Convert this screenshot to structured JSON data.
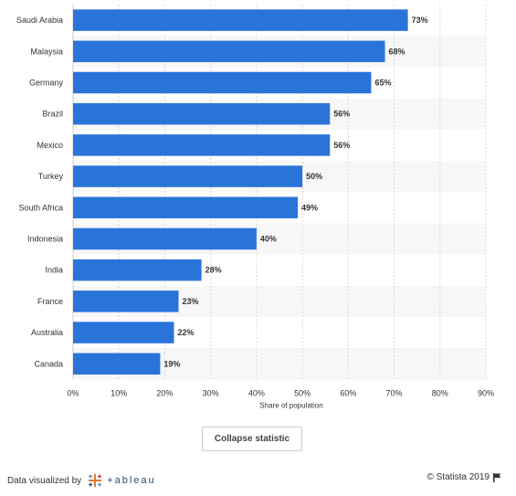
{
  "chart_data": {
    "type": "bar",
    "orientation": "horizontal",
    "categories": [
      "Saudi Arabia",
      "Malaysia",
      "Germany",
      "Brazil",
      "Mexico",
      "Turkey",
      "South Africa",
      "Indonesia",
      "India",
      "France",
      "Australia",
      "Canada"
    ],
    "values": [
      73,
      68,
      65,
      56,
      56,
      50,
      49,
      40,
      28,
      23,
      22,
      19
    ],
    "value_labels": [
      "73%",
      "68%",
      "65%",
      "56%",
      "56%",
      "50%",
      "49%",
      "40%",
      "28%",
      "23%",
      "22%",
      "19%"
    ],
    "xlabel": "Share of population",
    "ylabel": "",
    "xlim": [
      0,
      90
    ],
    "x_ticks": [
      "0%",
      "10%",
      "20%",
      "30%",
      "40%",
      "50%",
      "60%",
      "70%",
      "80%",
      "90%"
    ],
    "grid": true,
    "bar_color": "#2a74d9"
  },
  "controls": {
    "collapse_label": "Collapse statistic"
  },
  "footer": {
    "credit_text": "Data visualized by",
    "tableau_word": "+ableau",
    "copyright": "© Statista 2019"
  }
}
